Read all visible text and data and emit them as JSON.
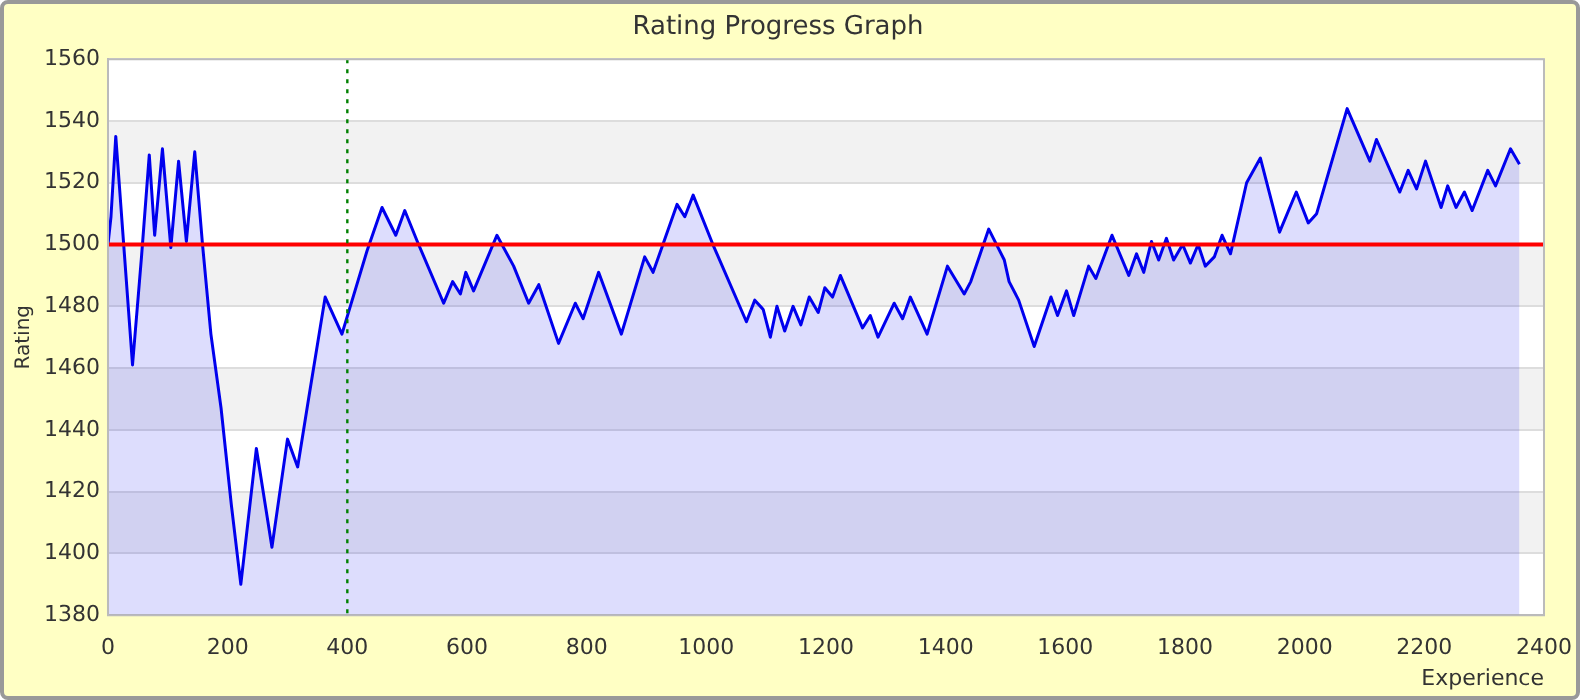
{
  "chart_data": {
    "type": "area",
    "title": "Rating Progress Graph",
    "xlabel": "Experience",
    "ylabel": "Rating",
    "xlim": [
      0,
      2400
    ],
    "xticks": [
      0,
      200,
      400,
      600,
      800,
      1000,
      1200,
      1400,
      1600,
      1800,
      2000,
      2200,
      2400
    ],
    "ylim": [
      1380,
      1560
    ],
    "yticks": [
      1380,
      1400,
      1420,
      1440,
      1460,
      1480,
      1500,
      1520,
      1540,
      1560
    ],
    "grid": "y",
    "legend": false,
    "marker": "none",
    "line_style": "solid",
    "series": [
      {
        "color": "#0000ee",
        "x": [
          0,
          5,
          13,
          41,
          56,
          69,
          78,
          91,
          105,
          118,
          131,
          145,
          158,
          172,
          189,
          206,
          222,
          248,
          274,
          300,
          317,
          336,
          363,
          391,
          433,
          458,
          481,
          496,
          517,
          561,
          576,
          589,
          598,
          611,
          650,
          678,
          703,
          720,
          753,
          781,
          794,
          820,
          858,
          897,
          911,
          951,
          964,
          978,
          1011,
          1067,
          1081,
          1095,
          1107,
          1118,
          1131,
          1145,
          1158,
          1172,
          1187,
          1198,
          1211,
          1224,
          1261,
          1274,
          1287,
          1314,
          1328,
          1341,
          1369,
          1403,
          1431,
          1442,
          1472,
          1498,
          1506,
          1522,
          1548,
          1576,
          1587,
          1602,
          1614,
          1639,
          1651,
          1678,
          1706,
          1719,
          1731,
          1744,
          1756,
          1769,
          1781,
          1796,
          1809,
          1822,
          1834,
          1849,
          1862,
          1876,
          1903,
          1926,
          1958,
          1986,
          2006,
          2020,
          2071,
          2109,
          2120,
          2159,
          2173,
          2187,
          2202,
          2228,
          2239,
          2253,
          2267,
          2280,
          2306,
          2319,
          2344,
          2359
        ],
        "values": [
          1500,
          1509,
          1535,
          1461,
          1496,
          1529,
          1503,
          1531,
          1499,
          1527,
          1501,
          1530,
          1500,
          1471,
          1447,
          1416,
          1390,
          1434,
          1402,
          1437,
          1428,
          1451,
          1483,
          1471,
          1498,
          1512,
          1503,
          1511,
          1501,
          1481,
          1488,
          1484,
          1491,
          1485,
          1503,
          1493,
          1481,
          1487,
          1468,
          1481,
          1476,
          1491,
          1471,
          1496,
          1491,
          1513,
          1509,
          1516,
          1500,
          1475,
          1482,
          1479,
          1470,
          1480,
          1472,
          1480,
          1474,
          1483,
          1478,
          1486,
          1483,
          1490,
          1473,
          1477,
          1470,
          1481,
          1476,
          1483,
          1471,
          1493,
          1484,
          1488,
          1505,
          1495,
          1488,
          1482,
          1467,
          1483,
          1477,
          1485,
          1477,
          1493,
          1489,
          1503,
          1490,
          1497,
          1491,
          1501,
          1495,
          1502,
          1495,
          1500,
          1494,
          1500,
          1493,
          1496,
          1503,
          1497,
          1520,
          1528,
          1504,
          1517,
          1507,
          1510,
          1544,
          1527,
          1534,
          1517,
          1524,
          1518,
          1527,
          1512,
          1519,
          1512,
          1517,
          1511,
          1524,
          1519,
          1531,
          1526
        ]
      }
    ],
    "ref_lines": [
      {
        "axis": "y",
        "value": 1500,
        "color": "#ff0000",
        "line_style": "solid"
      },
      {
        "axis": "x",
        "value": 400,
        "color": "#008000",
        "line_style": "dotted"
      }
    ]
  }
}
